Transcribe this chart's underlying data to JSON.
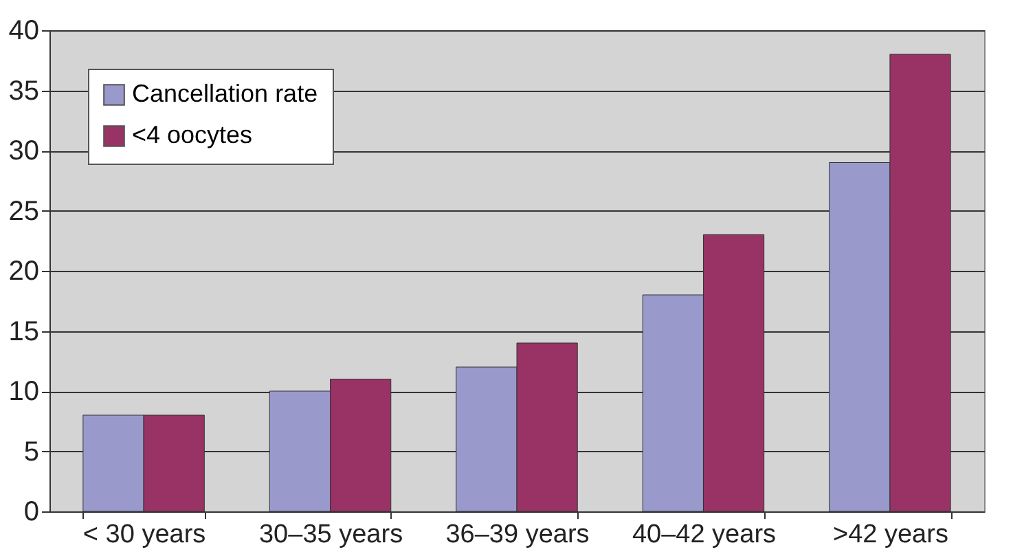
{
  "chart_data": {
    "type": "bar",
    "categories": [
      "< 30 years",
      "30–35 years",
      "36–39 years",
      "40–42 years",
      ">42 years"
    ],
    "series": [
      {
        "name": "Cancellation rate",
        "color": "#9999cc",
        "values": [
          8,
          10,
          12,
          18,
          29
        ]
      },
      {
        "name": "<4 oocytes",
        "color": "#993366",
        "values": [
          8,
          11,
          14,
          23,
          38
        ]
      }
    ],
    "ylim": [
      0,
      40
    ],
    "yticks": [
      0,
      5,
      10,
      15,
      20,
      25,
      30,
      35,
      40
    ],
    "grid": "y",
    "legend": "top left"
  }
}
